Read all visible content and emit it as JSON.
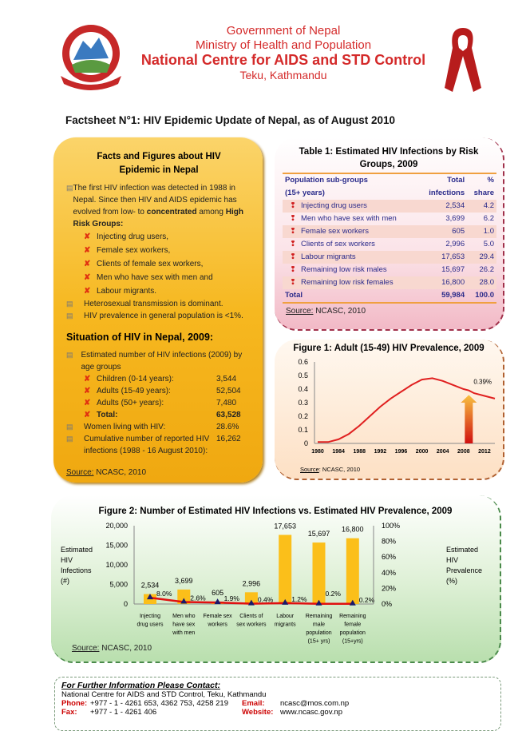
{
  "header": {
    "line1": "Government of Nepal",
    "line2": "Ministry of Health and Population",
    "line3": "National Centre for AIDS and STD Control",
    "line4": "Teku, Kathmandu"
  },
  "title": "Factsheet N°1: HIV Epidemic Update of Nepal, as of August 2010",
  "facts": {
    "heading": "Facts and Figures about HIV Epidemic in Nepal",
    "intro": "The first HIV infection was detected in 1988 in Nepal. Since then HIV and AIDS epidemic has evolved from low- to ",
    "intro_bold1": "concentrated",
    "intro_mid": " among ",
    "intro_bold2": "High Risk Groups:",
    "groups": [
      "Injecting drug users,",
      "Female sex workers,",
      "Clients of female sex workers,",
      "Men who have sex with men and",
      "Labour migrants."
    ],
    "points": [
      "Heterosexual transmission is dominant.",
      "HIV prevalence in general population is <1%."
    ],
    "situation_heading": "Situation of HIV in Nepal, 2009:",
    "est_label": "Estimated number of HIV infections (2009) by age groups",
    "age_groups": [
      {
        "label": "Children (0-14 years):",
        "value": "3,544"
      },
      {
        "label": "Adults (15-49 years):",
        "value": "52,504"
      },
      {
        "label": "Adults (50+ years):",
        "value": "7,480"
      },
      {
        "label": "Total:",
        "value": "63,528"
      }
    ],
    "women_label": "Women living with HIV:",
    "women_value": "28.6%",
    "cum_label": "Cumulative number of reported  HIV infections (1988 - 16 August 2010):",
    "cum_value": "16,262",
    "source_label": "Source:",
    "source_text": " NCASC, 2010"
  },
  "table1": {
    "title": "Table 1: Estimated HIV Infections by Risk Groups, 2009",
    "head": [
      "Population sub-groups",
      "Total",
      "%"
    ],
    "head2": [
      "(15+ years)",
      "infections",
      "share"
    ],
    "rows": [
      [
        "Injecting drug users",
        "2,534",
        "4.2"
      ],
      [
        "Men who have sex with men",
        "3,699",
        "6.2"
      ],
      [
        "Female sex workers",
        "605",
        "1.0"
      ],
      [
        "Clients of sex workers",
        "2,996",
        "5.0"
      ],
      [
        "Labour migrants",
        "17,653",
        "29.4"
      ],
      [
        "Remaining  low risk males",
        "15,697",
        "26.2"
      ],
      [
        "Remaining low risk females",
        "16,800",
        "28.0"
      ]
    ],
    "total": [
      "Total",
      "59,984",
      "100.0"
    ],
    "source_label": "Source:",
    "source_text": " NCASC, 2010"
  },
  "chart_data": [
    {
      "type": "line",
      "title": "Figure 1: Adult (15-49) HIV Prevalence, 2009",
      "x": [
        1980,
        1982,
        1984,
        1986,
        1988,
        1990,
        1992,
        1994,
        1996,
        1998,
        2000,
        2002,
        2004,
        2006,
        2008,
        2009,
        2010,
        2012,
        2014
      ],
      "y": [
        0.01,
        0.01,
        0.03,
        0.07,
        0.13,
        0.2,
        0.27,
        0.33,
        0.38,
        0.43,
        0.47,
        0.48,
        0.46,
        0.43,
        0.4,
        0.39,
        0.37,
        0.35,
        0.33
      ],
      "ylim": [
        0,
        0.6
      ],
      "yticks": [
        "0",
        "0.1",
        "0.2",
        "0.3",
        "0.4",
        "0.5",
        "0.6"
      ],
      "xticks": [
        "1980",
        "1984",
        "1988",
        "1992",
        "1996",
        "2000",
        "2004",
        "2008",
        "2012"
      ],
      "annotation": "0.39%",
      "source_label": "Source",
      "source_text": ": NCASC, 2010"
    },
    {
      "type": "bar+line",
      "title": "Figure 2: Number of Estimated HIV Infections vs. Estimated HIV Prevalence, 2009",
      "categories": [
        [
          "Injecting",
          "drug users"
        ],
        [
          "Men who",
          "have sex",
          "with men"
        ],
        [
          "Female sex",
          "workers"
        ],
        [
          "Clients of",
          "sex workers"
        ],
        [
          "Labour",
          "migrants"
        ],
        [
          "Remaining",
          "male",
          "population",
          "(15+ yrs)"
        ],
        [
          "Remaining",
          "female",
          "population",
          "(15+yrs)"
        ]
      ],
      "bars": [
        2534,
        3699,
        605,
        2996,
        17653,
        15697,
        16800
      ],
      "bar_labels": [
        "2,534",
        "3,699",
        "605",
        "2,996",
        "17,653",
        "15,697",
        "16,800"
      ],
      "prevalence": [
        8.0,
        2.6,
        1.9,
        0.4,
        1.2,
        0.2,
        0.2
      ],
      "prev_labels": [
        "8.0%",
        "2.6%",
        "1.9%",
        "0.4%",
        "1.2%",
        "0.2%",
        "0.2%"
      ],
      "ylim": [
        0,
        20000
      ],
      "yticks": [
        "0",
        "5,000",
        "10,000",
        "15,000",
        "20,000"
      ],
      "y2lim": [
        0,
        100
      ],
      "y2ticks": [
        "0%",
        "20%",
        "40%",
        "60%",
        "80%",
        "100%"
      ],
      "ylabel": [
        "Estimated",
        "HIV",
        "Infections",
        "(#)"
      ],
      "y2label": [
        "Estimated",
        "HIV",
        "Prevalence",
        "(%)"
      ],
      "source_label": "Source:",
      "source_text": " NCASC, 2010",
      "colors": {
        "bar": "#fbbf1a",
        "line": "#e01010",
        "marker": "#1a1a6a"
      }
    }
  ],
  "contact": {
    "heading": "For Further Information Please Contact:",
    "org": "National Centre for AIDS and STD Control, Teku, Kathmandu",
    "phone_label": "Phone:",
    "phone": "+977 - 1 - 4261 653, 4362 753, 4258 219",
    "fax_label": "Fax:",
    "fax": "+977 - 1 - 4261 406",
    "email_label": "Email:",
    "email": "ncasc@mos.com.np",
    "web_label": "Website:",
    "web": "www.ncasc.gov.np"
  }
}
